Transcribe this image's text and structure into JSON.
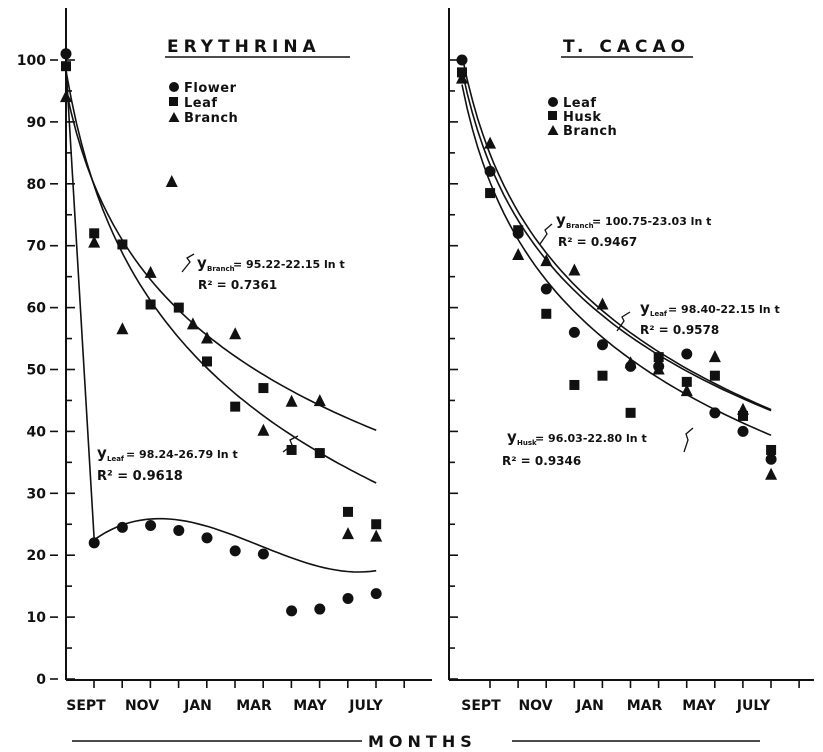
{
  "chart_data": [
    {
      "type": "scatter",
      "title": "ERYTHRINA",
      "ylim": [
        0,
        100
      ],
      "yticks": [
        "0",
        "10",
        "20",
        "30",
        "40",
        "50",
        "60",
        "70",
        "80",
        "90",
        "100"
      ],
      "xtick_labels": [
        "SEPT",
        "NOV",
        "JAN",
        "MAR",
        "MAY",
        "JULY"
      ],
      "legend": [
        "Flower",
        "Leaf",
        "Branch"
      ],
      "legend_position": "top-left",
      "series": [
        {
          "name": "Flower",
          "marker": "circle",
          "x": [
            0,
            1,
            2,
            3,
            4,
            5,
            6,
            7,
            8,
            9,
            10,
            11
          ],
          "y": [
            101,
            22,
            24.5,
            24.8,
            24,
            22.8,
            20.7,
            20.2,
            11,
            11.3,
            13,
            13.8
          ]
        },
        {
          "name": "Leaf",
          "marker": "square",
          "x": [
            0,
            1,
            2,
            3,
            4,
            5,
            6,
            7,
            8,
            9,
            10,
            11
          ],
          "y": [
            99,
            72,
            70.2,
            60.5,
            60,
            51.3,
            44,
            47,
            37,
            36.5,
            27,
            25
          ]
        },
        {
          "name": "Branch",
          "marker": "triangle",
          "x": [
            0,
            1,
            2,
            3,
            3.75,
            4.5,
            5,
            6,
            7,
            8,
            9,
            10,
            11
          ],
          "y": [
            94,
            70.5,
            56.5,
            65.6,
            80.3,
            57.3,
            55,
            55.7,
            40.1,
            44.8,
            44.9,
            23.4,
            23
          ]
        }
      ],
      "annotations": [
        {
          "target": "Branch",
          "equation": "y = 95.22-22.15 ln t",
          "r2": "R² = 0.7361"
        },
        {
          "target": "Leaf",
          "equation": "y = 98.24-26.79 ln t",
          "r2": "R² = 0.9618"
        }
      ]
    },
    {
      "type": "scatter",
      "title": "T. CACAO",
      "ylim": [
        0,
        100
      ],
      "xtick_labels": [
        "SEPT",
        "NOV",
        "JAN",
        "MAR",
        "MAY",
        "JULY"
      ],
      "legend": [
        "Leaf",
        "Husk",
        "Branch"
      ],
      "legend_position": "top-left",
      "series": [
        {
          "name": "Leaf",
          "marker": "circle",
          "x": [
            0,
            1,
            2,
            3,
            4,
            5,
            6,
            7,
            8,
            9,
            10,
            11
          ],
          "y": [
            100,
            82,
            72,
            63,
            56,
            54,
            50.5,
            50.5,
            52.5,
            43,
            40,
            35.5
          ]
        },
        {
          "name": "Husk",
          "marker": "square",
          "x": [
            0,
            1,
            2,
            3,
            4,
            5,
            6,
            7,
            8,
            9,
            10,
            11
          ],
          "y": [
            98,
            78.5,
            72.5,
            59,
            47.5,
            49,
            43,
            52,
            48,
            49,
            42.5,
            37
          ]
        },
        {
          "name": "Branch",
          "marker": "triangle",
          "x": [
            0,
            1,
            2,
            3,
            4,
            5,
            6,
            7,
            8,
            9,
            10,
            11
          ],
          "y": [
            97,
            86.5,
            68.5,
            67.5,
            66,
            60.5,
            51,
            50,
            46.5,
            52,
            43.5,
            33
          ]
        }
      ],
      "annotations": [
        {
          "target": "Branch",
          "equation": "y = 100.75-23.03 ln t",
          "r2": "R² = 0.9467"
        },
        {
          "target": "Leaf",
          "equation": "y = 98.40-22.15 ln t",
          "r2": "R² = 0.9578"
        },
        {
          "target": "Husk",
          "equation": "y = 96.03-22.80 ln t",
          "r2": "R² = 0.9346"
        }
      ]
    }
  ],
  "xlabel": "MONTHS",
  "text": {
    "title1": "ERYTHRINA",
    "title2": "T. CACAO",
    "legend1": [
      "Flower",
      "Leaf",
      "Branch"
    ],
    "legend2": [
      "Leaf",
      "Husk",
      "Branch"
    ],
    "ann": {
      "e_branch_y": "y",
      "e_branch_sub": "Branch",
      "e_branch_eq": "= 95.22-22.15 ln t",
      "e_branch_r2": "R² = 0.7361",
      "e_leaf_y": "y",
      "e_leaf_sub": "Leaf",
      "e_leaf_eq": "= 98.24-26.79 ln t",
      "e_leaf_r2": "R² = 0.9618",
      "c_branch_y": "y",
      "c_branch_sub": "Branch",
      "c_branch_eq": "= 100.75-23.03 ln t",
      "c_branch_r2": "R² = 0.9467",
      "c_leaf_y": "y",
      "c_leaf_sub": "Leaf",
      "c_leaf_eq": "= 98.40-22.15 ln t",
      "c_leaf_r2": "R² = 0.9578",
      "c_husk_y": "y",
      "c_husk_sub": "Husk",
      "c_husk_eq": "= 96.03-22.80 ln t",
      "c_husk_r2": "R² = 0.9346"
    }
  }
}
